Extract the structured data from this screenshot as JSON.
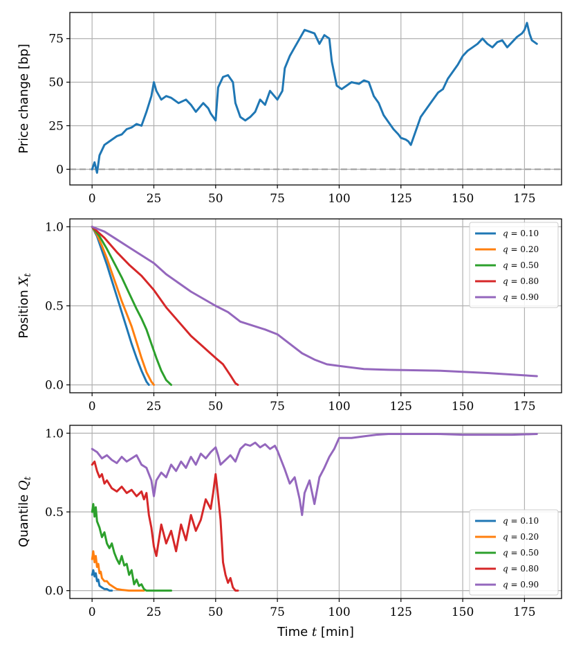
{
  "chart_data": [
    {
      "type": "line",
      "ylabel": "Price change [bp]",
      "xlabel": "",
      "xlim": [
        -9,
        190
      ],
      "ylim": [
        -9,
        90
      ],
      "xticks": [
        0,
        25,
        50,
        75,
        100,
        125,
        150,
        175
      ],
      "yticks": [
        0,
        25,
        50,
        75
      ],
      "grid": true,
      "reference_line": {
        "y": 0,
        "style": "dashed",
        "color": "#999999"
      },
      "series": [
        {
          "name": "price",
          "color": "#1f77b4",
          "x": [
            0,
            1,
            2,
            3,
            5,
            7,
            10,
            12,
            14,
            16,
            18,
            20,
            22,
            24,
            25,
            26,
            28,
            30,
            32,
            35,
            38,
            40,
            42,
            45,
            47,
            48,
            50,
            51,
            53,
            55,
            57,
            58,
            60,
            62,
            64,
            66,
            68,
            70,
            72,
            75,
            77,
            78,
            80,
            82,
            84,
            86,
            88,
            90,
            92,
            94,
            96,
            97,
            99,
            101,
            103,
            105,
            108,
            110,
            112,
            114,
            116,
            118,
            120,
            122,
            124,
            125,
            127,
            128,
            129,
            131,
            133,
            135,
            137,
            140,
            142,
            144,
            146,
            148,
            150,
            152,
            154,
            156,
            158,
            160,
            162,
            164,
            166,
            168,
            170,
            172,
            174,
            175,
            176,
            177,
            178,
            180
          ],
          "values": [
            0,
            4,
            -2,
            8,
            14,
            16,
            19,
            20,
            23,
            24,
            26,
            25,
            33,
            42,
            50,
            45,
            40,
            42,
            41,
            38,
            40,
            37,
            33,
            38,
            35,
            32,
            28,
            47,
            53,
            54,
            50,
            38,
            30,
            28,
            30,
            33,
            40,
            37,
            45,
            40,
            45,
            58,
            65,
            70,
            75,
            80,
            79,
            78,
            72,
            77,
            75,
            62,
            48,
            46,
            48,
            50,
            49,
            51,
            50,
            42,
            38,
            31,
            27,
            23,
            20,
            18,
            17,
            16,
            14,
            22,
            30,
            34,
            38,
            44,
            46,
            52,
            56,
            60,
            65,
            68,
            70,
            72,
            75,
            72,
            70,
            73,
            74,
            70,
            73,
            76,
            78,
            80,
            84,
            78,
            74,
            72
          ]
        }
      ]
    },
    {
      "type": "line",
      "ylabel": "Position X_t",
      "ylabel_text": "Position",
      "ylabel_var": "X",
      "ylabel_sub": "t",
      "xlabel": "",
      "xlim": [
        -9,
        190
      ],
      "ylim": [
        -0.05,
        1.05
      ],
      "xticks": [
        0,
        25,
        50,
        75,
        100,
        125,
        150,
        175
      ],
      "yticks": [
        "0.0",
        "0.5",
        "1.0"
      ],
      "grid": true,
      "legend": "top-right",
      "series": [
        {
          "name": "q = 0.10",
          "q_label": "q",
          "q_value": "0.10",
          "color": "#1f77b4",
          "x": [
            0,
            2,
            4,
            6,
            8,
            10,
            12,
            14,
            16,
            18,
            20,
            22,
            23
          ],
          "values": [
            1.0,
            0.94,
            0.85,
            0.76,
            0.66,
            0.56,
            0.46,
            0.36,
            0.26,
            0.17,
            0.09,
            0.02,
            0.0
          ]
        },
        {
          "name": "q = 0.20",
          "q_label": "q",
          "q_value": "0.20",
          "color": "#ff7f0e",
          "x": [
            0,
            2,
            4,
            6,
            8,
            10,
            12,
            14,
            16,
            18,
            20,
            22,
            24,
            25
          ],
          "values": [
            1.0,
            0.95,
            0.88,
            0.8,
            0.71,
            0.62,
            0.53,
            0.45,
            0.37,
            0.27,
            0.17,
            0.08,
            0.02,
            0.0
          ]
        },
        {
          "name": "q = 0.50",
          "q_label": "q",
          "q_value": "0.50",
          "color": "#2ca02c",
          "x": [
            0,
            3,
            6,
            9,
            12,
            15,
            18,
            20,
            22,
            24,
            26,
            28,
            30,
            32
          ],
          "values": [
            1.0,
            0.94,
            0.86,
            0.77,
            0.68,
            0.58,
            0.48,
            0.42,
            0.35,
            0.26,
            0.17,
            0.09,
            0.03,
            0.0
          ]
        },
        {
          "name": "q = 0.80",
          "q_label": "q",
          "q_value": "0.80",
          "color": "#d62728",
          "x": [
            0,
            5,
            10,
            15,
            20,
            25,
            30,
            35,
            40,
            45,
            50,
            53,
            56,
            58,
            59
          ],
          "values": [
            1.0,
            0.93,
            0.84,
            0.76,
            0.69,
            0.6,
            0.49,
            0.4,
            0.31,
            0.24,
            0.17,
            0.13,
            0.06,
            0.01,
            0.0
          ]
        },
        {
          "name": "q = 0.90",
          "q_label": "q",
          "q_value": "0.90",
          "color": "#9467bd",
          "x": [
            0,
            5,
            10,
            15,
            20,
            25,
            30,
            40,
            50,
            55,
            60,
            70,
            75,
            80,
            85,
            90,
            95,
            100,
            110,
            120,
            140,
            160,
            180
          ],
          "values": [
            1.0,
            0.97,
            0.92,
            0.87,
            0.82,
            0.77,
            0.7,
            0.59,
            0.5,
            0.46,
            0.4,
            0.35,
            0.32,
            0.26,
            0.2,
            0.16,
            0.13,
            0.12,
            0.1,
            0.095,
            0.09,
            0.075,
            0.055
          ]
        }
      ]
    },
    {
      "type": "line",
      "ylabel": "Quantile Q_t",
      "ylabel_text": "Quantile",
      "ylabel_var": "Q",
      "ylabel_sub": "t",
      "xlabel": "Time t [min]",
      "xlabel_text": "Time",
      "xlabel_var": "t",
      "xlabel_unit": "[min]",
      "xlim": [
        -9,
        190
      ],
      "ylim": [
        -0.05,
        1.05
      ],
      "xticks": [
        0,
        25,
        50,
        75,
        100,
        125,
        150,
        175
      ],
      "yticks": [
        "0.0",
        "0.5",
        "1.0"
      ],
      "grid": true,
      "legend": "bottom-right",
      "series": [
        {
          "name": "q = 0.10",
          "q_label": "q",
          "q_value": "0.10",
          "color": "#1f77b4",
          "x": [
            0,
            0.5,
            1,
            1.5,
            2,
            2.5,
            3,
            4,
            5,
            6,
            7,
            8
          ],
          "values": [
            0.1,
            0.13,
            0.09,
            0.11,
            0.06,
            0.07,
            0.03,
            0.02,
            0.01,
            0.01,
            0.0,
            0.0
          ]
        },
        {
          "name": "q = 0.20",
          "q_label": "q",
          "q_value": "0.20",
          "color": "#ff7f0e",
          "x": [
            0,
            0.5,
            1,
            1.5,
            2,
            2.5,
            3,
            3.5,
            4,
            5,
            6,
            7,
            8,
            9,
            10,
            12,
            15,
            18,
            20,
            21
          ],
          "values": [
            0.2,
            0.25,
            0.18,
            0.22,
            0.15,
            0.17,
            0.11,
            0.12,
            0.08,
            0.06,
            0.06,
            0.04,
            0.03,
            0.02,
            0.01,
            0.005,
            0.0,
            0.0,
            0.0,
            0.0
          ]
        },
        {
          "name": "q = 0.50",
          "q_label": "q",
          "q_value": "0.50",
          "color": "#2ca02c",
          "x": [
            0,
            0.5,
            1,
            1.5,
            2,
            3,
            4,
            5,
            6,
            7,
            8,
            9,
            10,
            11,
            12,
            13,
            14,
            15,
            16,
            17,
            18,
            19,
            20,
            21,
            22,
            25,
            28,
            32
          ],
          "values": [
            0.5,
            0.55,
            0.47,
            0.53,
            0.44,
            0.4,
            0.34,
            0.37,
            0.3,
            0.27,
            0.3,
            0.24,
            0.2,
            0.17,
            0.22,
            0.16,
            0.17,
            0.1,
            0.13,
            0.04,
            0.07,
            0.03,
            0.04,
            0.01,
            0.0,
            0.0,
            0.0,
            0.0
          ]
        },
        {
          "name": "q = 0.80",
          "q_label": "q",
          "q_value": "0.80",
          "color": "#d62728",
          "x": [
            0,
            1,
            2,
            3,
            4,
            5,
            6,
            8,
            10,
            12,
            14,
            16,
            18,
            20,
            21,
            22,
            23,
            24,
            25,
            26,
            28,
            30,
            32,
            34,
            36,
            38,
            40,
            42,
            44,
            46,
            48,
            49,
            50,
            51,
            52,
            53,
            54,
            55,
            56,
            57,
            58,
            59
          ],
          "values": [
            0.8,
            0.82,
            0.76,
            0.72,
            0.74,
            0.68,
            0.7,
            0.65,
            0.63,
            0.66,
            0.62,
            0.64,
            0.6,
            0.63,
            0.58,
            0.62,
            0.48,
            0.4,
            0.28,
            0.22,
            0.42,
            0.3,
            0.38,
            0.25,
            0.42,
            0.32,
            0.48,
            0.38,
            0.45,
            0.58,
            0.52,
            0.62,
            0.74,
            0.6,
            0.45,
            0.18,
            0.1,
            0.05,
            0.08,
            0.02,
            0.0,
            0.0
          ]
        },
        {
          "name": "q = 0.90",
          "q_label": "q",
          "q_value": "0.90",
          "color": "#9467bd",
          "x": [
            0,
            2,
            4,
            6,
            8,
            10,
            12,
            14,
            16,
            18,
            20,
            22,
            24,
            25,
            26,
            28,
            30,
            32,
            34,
            36,
            38,
            40,
            42,
            44,
            46,
            48,
            50,
            51,
            52,
            54,
            56,
            58,
            60,
            62,
            64,
            66,
            68,
            70,
            72,
            74,
            75,
            76,
            78,
            80,
            82,
            84,
            85,
            86,
            88,
            90,
            92,
            94,
            96,
            98,
            100,
            105,
            110,
            115,
            120,
            125,
            130,
            140,
            150,
            160,
            170,
            180
          ],
          "values": [
            0.9,
            0.88,
            0.84,
            0.86,
            0.83,
            0.81,
            0.85,
            0.82,
            0.84,
            0.86,
            0.8,
            0.78,
            0.7,
            0.6,
            0.7,
            0.75,
            0.72,
            0.8,
            0.76,
            0.82,
            0.78,
            0.85,
            0.8,
            0.87,
            0.84,
            0.88,
            0.91,
            0.86,
            0.8,
            0.83,
            0.86,
            0.82,
            0.9,
            0.93,
            0.92,
            0.94,
            0.91,
            0.93,
            0.9,
            0.92,
            0.89,
            0.85,
            0.77,
            0.68,
            0.72,
            0.58,
            0.48,
            0.62,
            0.7,
            0.55,
            0.72,
            0.78,
            0.85,
            0.9,
            0.97,
            0.97,
            0.98,
            0.99,
            0.995,
            0.995,
            0.995,
            0.995,
            0.99,
            0.99,
            0.99,
            0.995
          ]
        }
      ]
    }
  ]
}
